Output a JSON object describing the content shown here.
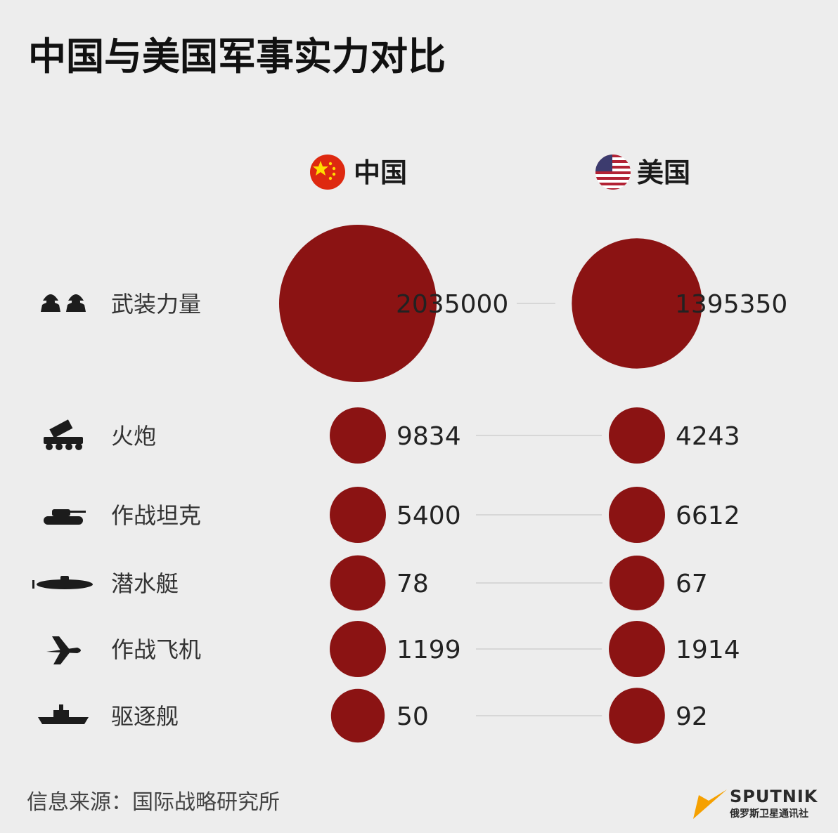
{
  "title": "中国与美国军事实力对比",
  "countries": [
    {
      "name": "中国",
      "flag_icon": "china-flag-icon",
      "flag_color": "#de2910"
    },
    {
      "name": "美国",
      "flag_icon": "usa-flag-icon",
      "flag_color": "#3c3b6e"
    }
  ],
  "source": "信息来源：国际战略研究所",
  "brand": {
    "name": "SPUTNIK",
    "sub": "俄罗斯卫星通讯社",
    "accent": "#f5a000"
  },
  "colors": {
    "bubble": "#8b1313",
    "background": "#ededed"
  },
  "chart_data": {
    "type": "bubble",
    "title": "中国与美国军事实力对比",
    "series": [
      {
        "name": "中国"
      },
      {
        "name": "美国"
      }
    ],
    "categories": [
      {
        "label": "武装力量",
        "icon": "soldiers-icon",
        "values": [
          2035000,
          1395350
        ]
      },
      {
        "label": "火炮",
        "icon": "rocket-launcher-icon",
        "values": [
          9834,
          4243
        ]
      },
      {
        "label": "作战坦克",
        "icon": "tank-icon",
        "values": [
          5400,
          6612
        ]
      },
      {
        "label": "潜水艇",
        "icon": "submarine-icon",
        "values": [
          78,
          67
        ]
      },
      {
        "label": "作战飞机",
        "icon": "airplane-icon",
        "values": [
          1199,
          1914
        ]
      },
      {
        "label": "驱逐舰",
        "icon": "destroyer-icon",
        "values": [
          50,
          92
        ]
      }
    ]
  }
}
